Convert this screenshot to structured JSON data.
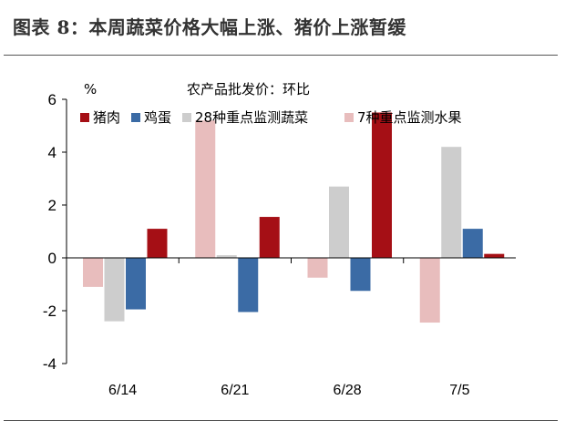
{
  "figure": {
    "title": "图表 8：本周蔬菜价格大幅上涨、猪价上涨暂缓"
  },
  "chart_data": {
    "type": "bar",
    "title": "农产品批发价：环比",
    "ylabel": "%",
    "xlabel": "",
    "categories": [
      "6/14",
      "6/21",
      "6/28",
      "7/5"
    ],
    "series": [
      {
        "name": "猪肉",
        "color": "#A50F15",
        "values": [
          1.1,
          1.55,
          5.5,
          0.15
        ]
      },
      {
        "name": "鸡蛋",
        "color": "#3B6BA5",
        "values": [
          -1.95,
          -2.05,
          -1.25,
          1.1
        ]
      },
      {
        "name": "28种重点监测蔬菜",
        "color": "#CDCDCD",
        "values": [
          -2.4,
          0.1,
          2.7,
          4.2
        ]
      },
      {
        "name": "7种重点监测水果",
        "color": "#E8BDBD",
        "values": [
          -1.1,
          5.2,
          -0.75,
          -2.45
        ]
      }
    ],
    "ylim": [
      -4,
      6
    ],
    "yticks": [
      "-4",
      "-2",
      "0",
      "2",
      "4",
      "6"
    ],
    "legend_position": "top",
    "grid": false
  }
}
